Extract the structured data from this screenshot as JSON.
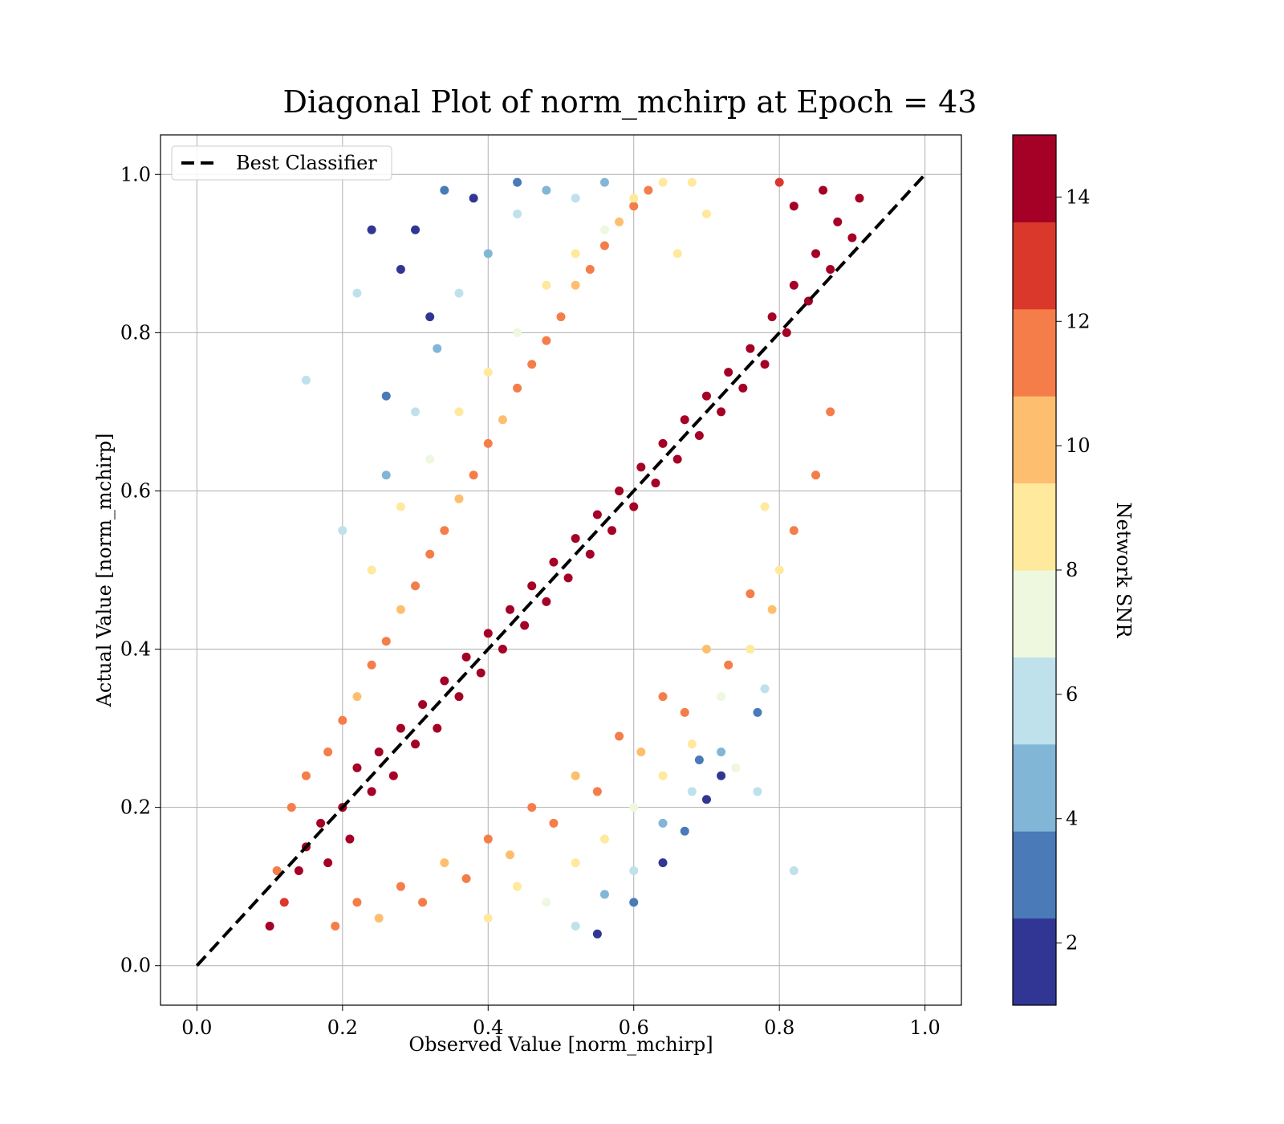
{
  "chart_data": {
    "type": "scatter",
    "title": "Diagonal Plot of norm_mchirp at Epoch = 43",
    "xlabel": "Observed Value [norm_mchirp]",
    "ylabel": "Actual Value [norm_mchirp]",
    "xlim": [
      -0.05,
      1.05
    ],
    "ylim": [
      -0.05,
      1.05
    ],
    "x_ticks": [
      "0.0",
      "0.2",
      "0.4",
      "0.6",
      "0.8",
      "1.0"
    ],
    "y_ticks": [
      "0.0",
      "0.2",
      "0.4",
      "0.6",
      "0.8",
      "1.0"
    ],
    "grid": true,
    "legend": {
      "entries": [
        "Best Classifier"
      ],
      "placement": "upper-left"
    },
    "reference_line": {
      "name": "Best Classifier",
      "style": "dashed",
      "color": "#000000",
      "x": [
        0,
        1
      ],
      "y": [
        0,
        1
      ]
    },
    "colorbar": {
      "label": "Network SNR",
      "range": [
        1,
        15
      ],
      "ticks": [
        "2",
        "4",
        "6",
        "8",
        "10",
        "12",
        "14"
      ],
      "levels": 10,
      "colormap": [
        "#313695",
        "#4a7ab7",
        "#82b6d7",
        "#bee1ec",
        "#edf8df",
        "#fee99d",
        "#fdbf6f",
        "#f47d4a",
        "#da382a",
        "#a50026"
      ]
    },
    "series": [
      {
        "marker": "circle",
        "points_xy_snr": [
          [
            0.1,
            0.05,
            14
          ],
          [
            0.12,
            0.08,
            13
          ],
          [
            0.14,
            0.12,
            14
          ],
          [
            0.15,
            0.15,
            14
          ],
          [
            0.17,
            0.18,
            14
          ],
          [
            0.18,
            0.13,
            14
          ],
          [
            0.2,
            0.2,
            14
          ],
          [
            0.21,
            0.16,
            14
          ],
          [
            0.22,
            0.25,
            14
          ],
          [
            0.24,
            0.22,
            14
          ],
          [
            0.25,
            0.27,
            14
          ],
          [
            0.27,
            0.24,
            14
          ],
          [
            0.28,
            0.3,
            14
          ],
          [
            0.3,
            0.28,
            14
          ],
          [
            0.31,
            0.33,
            14
          ],
          [
            0.33,
            0.3,
            14
          ],
          [
            0.34,
            0.36,
            14
          ],
          [
            0.36,
            0.34,
            14
          ],
          [
            0.37,
            0.39,
            14
          ],
          [
            0.39,
            0.37,
            14
          ],
          [
            0.4,
            0.42,
            14
          ],
          [
            0.42,
            0.4,
            14
          ],
          [
            0.43,
            0.45,
            14
          ],
          [
            0.45,
            0.43,
            14
          ],
          [
            0.46,
            0.48,
            14
          ],
          [
            0.48,
            0.46,
            14
          ],
          [
            0.49,
            0.51,
            14
          ],
          [
            0.51,
            0.49,
            14
          ],
          [
            0.52,
            0.54,
            14
          ],
          [
            0.54,
            0.52,
            14
          ],
          [
            0.55,
            0.57,
            14
          ],
          [
            0.57,
            0.55,
            14
          ],
          [
            0.58,
            0.6,
            14
          ],
          [
            0.6,
            0.58,
            14
          ],
          [
            0.61,
            0.63,
            14
          ],
          [
            0.63,
            0.61,
            14
          ],
          [
            0.64,
            0.66,
            14
          ],
          [
            0.66,
            0.64,
            14
          ],
          [
            0.67,
            0.69,
            14
          ],
          [
            0.69,
            0.67,
            14
          ],
          [
            0.7,
            0.72,
            14
          ],
          [
            0.72,
            0.7,
            14
          ],
          [
            0.73,
            0.75,
            14
          ],
          [
            0.75,
            0.73,
            14
          ],
          [
            0.76,
            0.78,
            14
          ],
          [
            0.78,
            0.76,
            14
          ],
          [
            0.79,
            0.82,
            14
          ],
          [
            0.81,
            0.8,
            14
          ],
          [
            0.82,
            0.86,
            14
          ],
          [
            0.84,
            0.84,
            14
          ],
          [
            0.85,
            0.9,
            14
          ],
          [
            0.87,
            0.88,
            14
          ],
          [
            0.88,
            0.94,
            14
          ],
          [
            0.9,
            0.92,
            14
          ],
          [
            0.86,
            0.98,
            14
          ],
          [
            0.82,
            0.96,
            14
          ],
          [
            0.8,
            0.99,
            13
          ],
          [
            0.91,
            0.97,
            14
          ],
          [
            0.11,
            0.12,
            11
          ],
          [
            0.13,
            0.2,
            12
          ],
          [
            0.15,
            0.24,
            11
          ],
          [
            0.18,
            0.27,
            12
          ],
          [
            0.2,
            0.31,
            11
          ],
          [
            0.22,
            0.34,
            10
          ],
          [
            0.24,
            0.38,
            12
          ],
          [
            0.26,
            0.41,
            11
          ],
          [
            0.28,
            0.45,
            10
          ],
          [
            0.3,
            0.48,
            11
          ],
          [
            0.32,
            0.52,
            12
          ],
          [
            0.34,
            0.55,
            11
          ],
          [
            0.36,
            0.59,
            10
          ],
          [
            0.38,
            0.62,
            12
          ],
          [
            0.4,
            0.66,
            11
          ],
          [
            0.42,
            0.69,
            10
          ],
          [
            0.44,
            0.73,
            12
          ],
          [
            0.46,
            0.76,
            11
          ],
          [
            0.48,
            0.79,
            12
          ],
          [
            0.5,
            0.82,
            11
          ],
          [
            0.52,
            0.86,
            10
          ],
          [
            0.54,
            0.88,
            12
          ],
          [
            0.56,
            0.91,
            11
          ],
          [
            0.58,
            0.94,
            10
          ],
          [
            0.6,
            0.96,
            12
          ],
          [
            0.62,
            0.98,
            11
          ],
          [
            0.19,
            0.05,
            12
          ],
          [
            0.22,
            0.08,
            11
          ],
          [
            0.25,
            0.06,
            10
          ],
          [
            0.28,
            0.1,
            12
          ],
          [
            0.31,
            0.08,
            11
          ],
          [
            0.34,
            0.13,
            10
          ],
          [
            0.37,
            0.11,
            12
          ],
          [
            0.4,
            0.16,
            11
          ],
          [
            0.43,
            0.14,
            10
          ],
          [
            0.46,
            0.2,
            12
          ],
          [
            0.49,
            0.18,
            11
          ],
          [
            0.52,
            0.24,
            10
          ],
          [
            0.55,
            0.22,
            12
          ],
          [
            0.58,
            0.29,
            11
          ],
          [
            0.61,
            0.27,
            10
          ],
          [
            0.64,
            0.34,
            12
          ],
          [
            0.67,
            0.32,
            11
          ],
          [
            0.7,
            0.4,
            10
          ],
          [
            0.73,
            0.38,
            12
          ],
          [
            0.76,
            0.47,
            11
          ],
          [
            0.79,
            0.45,
            10
          ],
          [
            0.82,
            0.55,
            12
          ],
          [
            0.85,
            0.62,
            11
          ],
          [
            0.87,
            0.7,
            12
          ],
          [
            0.24,
            0.5,
            8
          ],
          [
            0.28,
            0.58,
            9
          ],
          [
            0.32,
            0.64,
            7
          ],
          [
            0.36,
            0.7,
            8
          ],
          [
            0.4,
            0.75,
            9
          ],
          [
            0.44,
            0.8,
            7
          ],
          [
            0.48,
            0.86,
            8
          ],
          [
            0.52,
            0.9,
            9
          ],
          [
            0.56,
            0.93,
            7
          ],
          [
            0.6,
            0.97,
            8
          ],
          [
            0.64,
            0.99,
            9
          ],
          [
            0.68,
            0.99,
            8
          ],
          [
            0.7,
            0.95,
            9
          ],
          [
            0.66,
            0.9,
            9
          ],
          [
            0.4,
            0.06,
            8
          ],
          [
            0.44,
            0.1,
            9
          ],
          [
            0.48,
            0.08,
            7
          ],
          [
            0.52,
            0.13,
            8
          ],
          [
            0.56,
            0.16,
            9
          ],
          [
            0.6,
            0.2,
            7
          ],
          [
            0.64,
            0.24,
            8
          ],
          [
            0.68,
            0.28,
            9
          ],
          [
            0.72,
            0.34,
            7
          ],
          [
            0.76,
            0.4,
            8
          ],
          [
            0.8,
            0.5,
            9
          ],
          [
            0.78,
            0.58,
            9
          ],
          [
            0.74,
            0.25,
            7
          ],
          [
            0.26,
            0.62,
            5
          ],
          [
            0.3,
            0.7,
            6
          ],
          [
            0.33,
            0.78,
            5
          ],
          [
            0.36,
            0.85,
            6
          ],
          [
            0.4,
            0.9,
            5
          ],
          [
            0.44,
            0.95,
            6
          ],
          [
            0.48,
            0.98,
            5
          ],
          [
            0.52,
            0.97,
            6
          ],
          [
            0.56,
            0.99,
            5
          ],
          [
            0.22,
            0.85,
            6
          ],
          [
            0.15,
            0.74,
            6
          ],
          [
            0.2,
            0.55,
            6
          ],
          [
            0.52,
            0.05,
            6
          ],
          [
            0.56,
            0.09,
            5
          ],
          [
            0.6,
            0.12,
            6
          ],
          [
            0.64,
            0.18,
            5
          ],
          [
            0.68,
            0.22,
            6
          ],
          [
            0.72,
            0.27,
            5
          ],
          [
            0.78,
            0.35,
            6
          ],
          [
            0.82,
            0.12,
            6
          ],
          [
            0.77,
            0.22,
            6
          ],
          [
            0.3,
            0.93,
            2
          ],
          [
            0.34,
            0.98,
            3
          ],
          [
            0.38,
            0.97,
            2
          ],
          [
            0.24,
            0.93,
            2
          ],
          [
            0.26,
            0.72,
            3
          ],
          [
            0.28,
            0.88,
            2
          ],
          [
            0.44,
            0.99,
            3
          ],
          [
            0.32,
            0.82,
            2
          ],
          [
            0.55,
            0.04,
            2
          ],
          [
            0.6,
            0.08,
            3
          ],
          [
            0.64,
            0.13,
            2
          ],
          [
            0.67,
            0.17,
            3
          ],
          [
            0.7,
            0.21,
            2
          ],
          [
            0.72,
            0.24,
            2
          ],
          [
            0.77,
            0.32,
            3
          ],
          [
            0.69,
            0.26,
            3
          ]
        ]
      }
    ]
  }
}
